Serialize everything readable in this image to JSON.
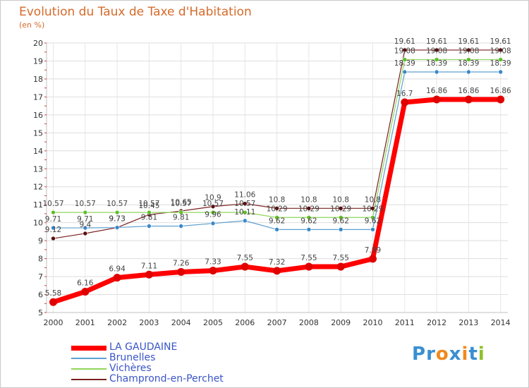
{
  "title": "Evolution du Taux de Taxe d'Habitation",
  "subtitle": "(en %)",
  "logo": {
    "letters": [
      {
        "ch": "P",
        "color": "#3a8fd1"
      },
      {
        "ch": "r",
        "color": "#3a8fd1"
      },
      {
        "ch": "o",
        "color": "#f08a1e"
      },
      {
        "ch": "x",
        "color": "#3a8fd1"
      },
      {
        "ch": "i",
        "color": "#f08a1e"
      },
      {
        "ch": "t",
        "color": "#3a8fd1"
      },
      {
        "ch": "i",
        "color": "#8fbf2a"
      }
    ]
  },
  "chart_data": {
    "type": "line",
    "x": [
      "2000",
      "2001",
      "2002",
      "2003",
      "2004",
      "2005",
      "2006",
      "2007",
      "2008",
      "2009",
      "2010",
      "2011",
      "2012",
      "2013",
      "2014"
    ],
    "ylim": [
      5,
      20
    ],
    "yticks": [
      5,
      6,
      7,
      8,
      9,
      10,
      11,
      12,
      13,
      14,
      15,
      16,
      17,
      18,
      19,
      20
    ],
    "grid": true,
    "legend_position": "bottom-left",
    "series": [
      {
        "name": "Champrond-en-Perchet",
        "color": "#7a2020",
        "marker": "#5a0f0f",
        "width": 1.2,
        "values": [
          9.12,
          9.4,
          9.73,
          10.45,
          10.65,
          10.9,
          11.06,
          10.8,
          10.8,
          10.8,
          10.8,
          19.61,
          19.61,
          19.61,
          19.61
        ],
        "labels": [
          "9.12",
          "9.4",
          "9.73",
          "10.45",
          "10.65",
          "10.9",
          "11.06",
          "10.8",
          "10.8",
          "10.8",
          "10.8",
          "19.61",
          "19.61",
          "19.61",
          "19.61"
        ]
      },
      {
        "name": "Vichères",
        "color": "#8fd65a",
        "marker": "#5fbf2a",
        "width": 1.2,
        "values": [
          10.57,
          10.57,
          10.57,
          10.57,
          10.57,
          10.57,
          10.57,
          10.29,
          10.29,
          10.29,
          10.29,
          19.08,
          19.08,
          19.08,
          19.08
        ],
        "labels": [
          "10.57",
          "10.57",
          "10.57",
          "10.57",
          "10.57",
          "10.57",
          "10.57",
          "10.29",
          "10.29",
          "10.29",
          "10.29",
          "19.08",
          "19.08",
          "19.08",
          "19.08"
        ]
      },
      {
        "name": "Brunelles",
        "color": "#5f9fcf",
        "marker": "#3a88c8",
        "width": 1.2,
        "values": [
          9.71,
          9.71,
          9.73,
          9.81,
          9.81,
          9.96,
          10.11,
          9.62,
          9.62,
          9.62,
          9.62,
          18.39,
          18.39,
          18.39,
          18.39
        ],
        "labels": [
          "9.71",
          "9.71",
          "9.73",
          "9.81",
          "9.81",
          "9.96",
          "10.11",
          "9.62",
          "9.62",
          "9.62",
          "9.62",
          "18.39",
          "18.39",
          "18.39",
          "18.39"
        ]
      },
      {
        "name": "LA GAUDAINE",
        "color": "#ff0000",
        "marker": "#e00000",
        "width": 7,
        "values": [
          5.58,
          6.16,
          6.94,
          7.11,
          7.26,
          7.33,
          7.55,
          7.32,
          7.55,
          7.55,
          7.99,
          16.7,
          16.86,
          16.86,
          16.86
        ],
        "labels": [
          "5.58",
          "6.16",
          "6.94",
          "7.11",
          "7.26",
          "7.33",
          "7.55",
          "7.32",
          "7.55",
          "7.55",
          "7.99",
          "16.7",
          "16.86",
          "16.86",
          "16.86"
        ]
      }
    ],
    "legend_order": [
      "LA GAUDAINE",
      "Brunelles",
      "Vichères",
      "Champrond-en-Perchet"
    ]
  }
}
